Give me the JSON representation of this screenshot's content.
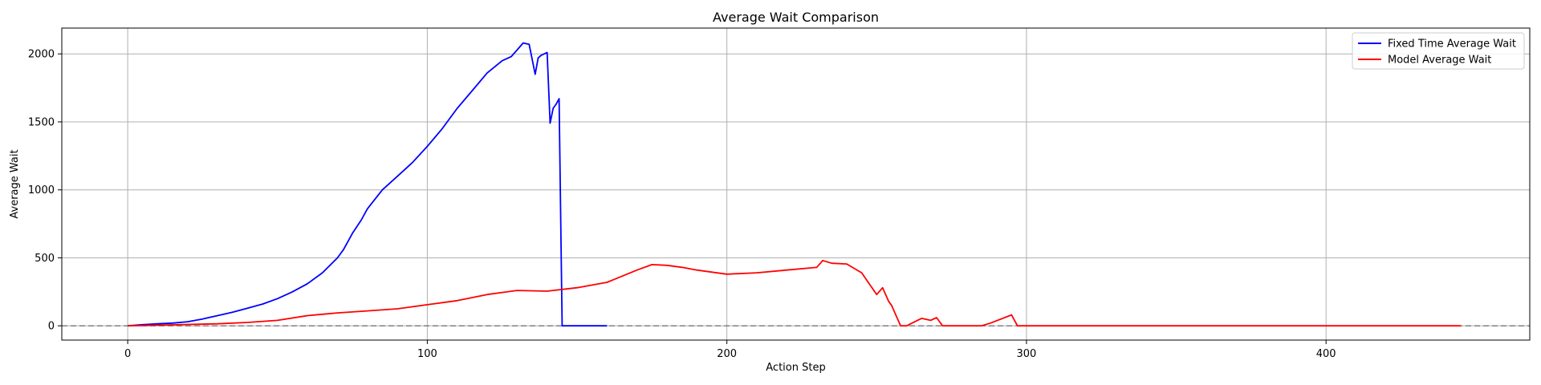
{
  "chart_data": {
    "type": "line",
    "title": "Average Wait Comparison",
    "xlabel": "Action Step",
    "ylabel": "Average Wait",
    "xlim": [
      -22,
      468
    ],
    "ylim": [
      -105,
      2190
    ],
    "xticks": [
      0,
      100,
      200,
      300,
      400
    ],
    "yticks": [
      0,
      500,
      1000,
      1500,
      2000
    ],
    "grid": true,
    "legend_position": "upper right",
    "reference_line": {
      "y": 0,
      "style": "dashed",
      "color": "#808080"
    },
    "series": [
      {
        "name": "Fixed Time Average Wait",
        "color": "#0000ff",
        "x": [
          0,
          5,
          10,
          15,
          20,
          25,
          30,
          35,
          40,
          45,
          50,
          55,
          60,
          65,
          70,
          72,
          75,
          78,
          80,
          85,
          90,
          95,
          100,
          105,
          110,
          115,
          120,
          125,
          128,
          130,
          132,
          134,
          136,
          137,
          138,
          140,
          141,
          142,
          143,
          144,
          145,
          150,
          155,
          160
        ],
        "y": [
          0,
          8,
          15,
          20,
          30,
          50,
          75,
          100,
          130,
          160,
          200,
          250,
          310,
          390,
          500,
          560,
          680,
          780,
          860,
          1000,
          1100,
          1200,
          1320,
          1450,
          1600,
          1730,
          1860,
          1950,
          1980,
          2030,
          2080,
          2070,
          1850,
          1970,
          1990,
          2010,
          1490,
          1600,
          1630,
          1670,
          0,
          0,
          0,
          0
        ]
      },
      {
        "name": "Model Average Wait",
        "color": "#ff0000",
        "x": [
          0,
          10,
          20,
          30,
          40,
          50,
          60,
          65,
          70,
          80,
          90,
          100,
          110,
          120,
          130,
          140,
          150,
          160,
          170,
          175,
          180,
          185,
          190,
          200,
          210,
          220,
          230,
          232,
          235,
          240,
          245,
          250,
          252,
          254,
          255,
          258,
          260,
          265,
          268,
          270,
          272,
          275,
          285,
          288,
          295,
          296,
          297,
          300,
          350,
          400,
          445
        ],
        "y": [
          0,
          5,
          10,
          15,
          25,
          40,
          75,
          85,
          95,
          110,
          125,
          155,
          185,
          230,
          260,
          255,
          280,
          320,
          410,
          450,
          445,
          430,
          410,
          380,
          390,
          410,
          430,
          480,
          460,
          455,
          390,
          230,
          280,
          180,
          150,
          0,
          0,
          55,
          40,
          60,
          0,
          0,
          0,
          20,
          80,
          40,
          0,
          0,
          0,
          0,
          0
        ]
      }
    ]
  }
}
